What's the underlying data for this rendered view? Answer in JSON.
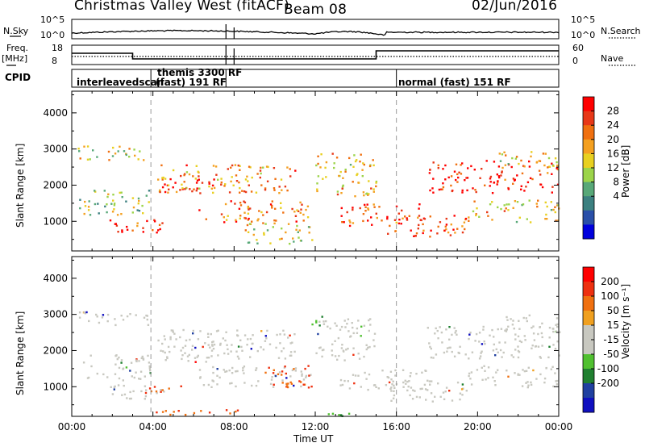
{
  "title": {
    "station": "Christmas Valley West (fitACF)",
    "beam": "Beam 08",
    "date": "02/Jun/2016"
  },
  "status_panels": {
    "nsky_label": "N.Sky",
    "nsky_ticks": [
      "10^5",
      "10^0"
    ],
    "nsearch_label": "N.Search",
    "nsearch_ticks": [
      "10^5",
      "10^0"
    ],
    "freq_label": "Freq.",
    "freq_unit": "[MHz]",
    "freq_ticks": [
      "18",
      "8"
    ],
    "nave_label": "Nave",
    "nave_ticks": [
      "60",
      "0"
    ],
    "cpid_label": "CPID"
  },
  "cpid_segments": [
    {
      "name": "interleavedscan",
      "start_hour": 0
    },
    {
      "name": "themis 3300 RF",
      "start_hour": 7.6
    },
    {
      "name": "(fast) 191 RF",
      "start_hour": 3.9
    },
    {
      "name": "normal (fast) 151 RF",
      "start_hour": 16.0
    }
  ],
  "colors": {
    "power_scale": [
      "#0000dd",
      "#2a4fa8",
      "#3c8080",
      "#58a878",
      "#9cd44a",
      "#e8d020",
      "#f4a020",
      "#f07010",
      "#e83818",
      "#ff0000"
    ],
    "velocity_scale": [
      "#1010c0",
      "#2040a0",
      "#208030",
      "#50c030",
      "#c8c8c0",
      "#c8c8c0",
      "#f0a020",
      "#f07010",
      "#ee3010",
      "#ff0000"
    ],
    "velocity_ground": "#c8c8c0"
  },
  "chart_data": [
    {
      "type": "heatmap",
      "name": "power",
      "ylabel": "Slant Range [km]",
      "xlim": [
        0,
        24
      ],
      "ylim": [
        180,
        4600
      ],
      "yticks": [
        1000,
        2000,
        3000,
        4000
      ],
      "colorbar_label": "Power [dB]",
      "colorbar_ticks": [
        "28",
        "24",
        "20",
        "16",
        "12",
        "8",
        "4"
      ],
      "scatter_bands": [
        {
          "h0": 0.2,
          "h1": 3.8,
          "r0": 2700,
          "r1": 3100,
          "level": 0.55
        },
        {
          "h0": 0.3,
          "h1": 3.9,
          "r0": 1200,
          "r1": 1900,
          "level": 0.45
        },
        {
          "h0": 1.8,
          "h1": 4.6,
          "r0": 650,
          "r1": 1100,
          "level": 0.9
        },
        {
          "h0": 4.4,
          "h1": 7.0,
          "r0": 1700,
          "r1": 2200,
          "level": 0.95
        },
        {
          "h0": 4.2,
          "h1": 11.0,
          "r0": 1800,
          "r1": 2600,
          "level": 0.7
        },
        {
          "h0": 6.2,
          "h1": 11.8,
          "r0": 1000,
          "r1": 1600,
          "level": 0.75
        },
        {
          "h0": 8.5,
          "h1": 12.0,
          "r0": 400,
          "r1": 1000,
          "level": 0.55
        },
        {
          "h0": 12.0,
          "h1": 15.0,
          "r0": 1700,
          "r1": 2900,
          "level": 0.6
        },
        {
          "h0": 13.2,
          "h1": 17.5,
          "r0": 900,
          "r1": 1500,
          "level": 0.85
        },
        {
          "h0": 15.5,
          "h1": 19.5,
          "r0": 600,
          "r1": 1200,
          "level": 0.8
        },
        {
          "h0": 17.5,
          "h1": 24.0,
          "r0": 1800,
          "r1": 2700,
          "level": 0.9
        },
        {
          "h0": 19.5,
          "h1": 24.0,
          "r0": 1000,
          "r1": 1600,
          "level": 0.6
        },
        {
          "h0": 21.0,
          "h1": 24.0,
          "r0": 2500,
          "r1": 3000,
          "level": 0.55
        }
      ]
    },
    {
      "type": "heatmap",
      "name": "velocity",
      "xlabel": "Time UT",
      "ylabel": "Slant Range [km]",
      "xlim": [
        0,
        24
      ],
      "ylim": [
        180,
        4600
      ],
      "xticks": [
        "00:00",
        "04:00",
        "08:00",
        "12:00",
        "16:00",
        "20:00",
        "00:00"
      ],
      "yticks": [
        1000,
        2000,
        3000,
        4000
      ],
      "colorbar_label": "Velocity [m s⁻¹]",
      "colorbar_ticks": [
        "200",
        "100",
        "50",
        "15",
        "-15",
        "-50",
        "-100",
        "-200"
      ],
      "scatter_bands": [
        {
          "h0": 0.2,
          "h1": 3.8,
          "r0": 2700,
          "r1": 3100,
          "level": 0.5
        },
        {
          "h0": 0.3,
          "h1": 3.9,
          "r0": 1200,
          "r1": 1900,
          "level": 0.5
        },
        {
          "h0": 1.8,
          "h1": 4.6,
          "r0": 650,
          "r1": 1100,
          "level": 0.5
        },
        {
          "h0": 4.4,
          "h1": 7.0,
          "r0": 1700,
          "r1": 2200,
          "level": 0.5
        },
        {
          "h0": 4.2,
          "h1": 11.0,
          "r0": 1800,
          "r1": 2600,
          "level": 0.5
        },
        {
          "h0": 6.2,
          "h1": 11.8,
          "r0": 1000,
          "r1": 1600,
          "level": 0.5
        },
        {
          "h0": 12.0,
          "h1": 15.0,
          "r0": 1700,
          "r1": 2900,
          "level": 0.5
        },
        {
          "h0": 13.2,
          "h1": 17.5,
          "r0": 900,
          "r1": 1500,
          "level": 0.5
        },
        {
          "h0": 15.5,
          "h1": 19.5,
          "r0": 600,
          "r1": 1200,
          "level": 0.5
        },
        {
          "h0": 17.5,
          "h1": 24.0,
          "r0": 1800,
          "r1": 2700,
          "level": 0.5
        },
        {
          "h0": 19.5,
          "h1": 24.0,
          "r0": 1000,
          "r1": 1600,
          "level": 0.5
        },
        {
          "h0": 21.0,
          "h1": 24.0,
          "r0": 2500,
          "r1": 3000,
          "level": 0.5
        },
        {
          "h0": 9.5,
          "h1": 11.9,
          "r0": 1000,
          "r1": 1600,
          "level": 0.78
        },
        {
          "h0": 3.8,
          "h1": 5.5,
          "r0": 800,
          "r1": 1050,
          "level": 0.8
        },
        {
          "h0": 11.7,
          "h1": 12.3,
          "r0": 2700,
          "r1": 3200,
          "level": 0.3
        },
        {
          "h0": 12.3,
          "h1": 15.0,
          "r0": 200,
          "r1": 320,
          "level": 0.3
        },
        {
          "h0": 3.8,
          "h1": 9.0,
          "r0": 250,
          "r1": 400,
          "level": 0.78
        }
      ]
    }
  ]
}
